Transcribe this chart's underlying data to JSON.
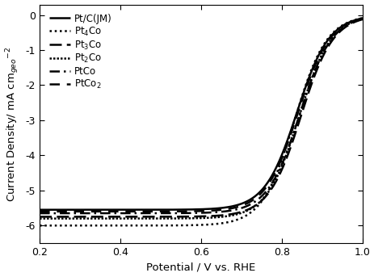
{
  "title": "",
  "xlabel": "Potential / V vs. RHE",
  "ylabel": "Current Density/ mA cm$_{geo}$$^{-2}$",
  "xlim": [
    0.2,
    1.0
  ],
  "ylim": [
    -6.5,
    0.3
  ],
  "xticks": [
    0.2,
    0.4,
    0.6,
    0.8,
    1.0
  ],
  "yticks": [
    0,
    -1,
    -2,
    -3,
    -4,
    -5,
    -6
  ],
  "series": [
    {
      "label": "Pt/C(JM)",
      "linestyle": "solid",
      "linewidth": 1.8,
      "color": "#000000",
      "limiting_current": -5.55,
      "half_wave": 0.838,
      "k": 25
    },
    {
      "label": "Pt$_4$Co",
      "linestyle": "dotted",
      "linewidth": 1.8,
      "color": "#000000",
      "limiting_current": -6.0,
      "half_wave": 0.832,
      "k": 25
    },
    {
      "label": "Pt$_3$Co",
      "linestyle": "dashed",
      "linewidth": 1.8,
      "color": "#000000",
      "limiting_current": -5.75,
      "half_wave": 0.848,
      "k": 25
    },
    {
      "label": "Pt$_2$Co",
      "linestyle": "densely dotted",
      "linewidth": 1.8,
      "color": "#000000",
      "limiting_current": -5.8,
      "half_wave": 0.843,
      "k": 25
    },
    {
      "label": "PtCo",
      "linestyle": "dashdot",
      "linewidth": 1.8,
      "color": "#000000",
      "limiting_current": -5.65,
      "half_wave": 0.845,
      "k": 25
    },
    {
      "label": "PtCo$_2$",
      "linestyle": "loosely dashed",
      "linewidth": 1.8,
      "color": "#000000",
      "limiting_current": -5.6,
      "half_wave": 0.84,
      "k": 25
    }
  ],
  "background_color": "#ffffff",
  "legend_fontsize": 8.5,
  "axis_fontsize": 9.5,
  "tick_fontsize": 9
}
